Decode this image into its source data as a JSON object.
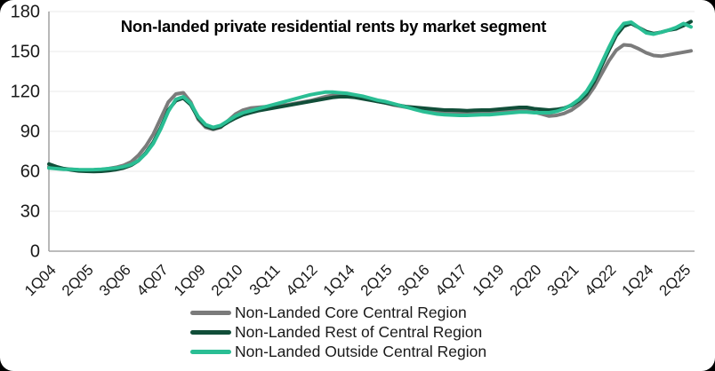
{
  "chart_data": {
    "type": "line",
    "title": "Non-landed private residential rents by market segment",
    "xlabel": "",
    "ylabel": "",
    "ylim": [
      0,
      180
    ],
    "y_ticks": [
      0,
      30,
      60,
      90,
      120,
      150,
      180
    ],
    "x_tick_labels": [
      "1Q04",
      "2Q05",
      "3Q06",
      "4Q07",
      "1Q09",
      "2Q10",
      "3Q11",
      "4Q12",
      "1Q14",
      "2Q15",
      "3Q16",
      "4Q17",
      "1Q19",
      "2Q20",
      "3Q21",
      "4Q22",
      "1Q24",
      "2Q25"
    ],
    "x_tick_every": 5,
    "x_frequency": "quarterly",
    "grid": "horizontal-light",
    "legend_position": "bottom",
    "gridline_color": "#e8e8e8",
    "axis_color": "#a6a6a6",
    "label_color": "#1a1a1a",
    "series": [
      {
        "name": "Non-Landed Core Central Region",
        "color": "#7b7b7b",
        "values": [
          63.5,
          62.5,
          62,
          61.5,
          61,
          60.8,
          61,
          61.3,
          62,
          63,
          64.5,
          67,
          72,
          79,
          88,
          100,
          112,
          118,
          119,
          112,
          99,
          93,
          91.5,
          93,
          98,
          103,
          106,
          107.5,
          108,
          108.5,
          109,
          109.5,
          110,
          111,
          112,
          113,
          114.5,
          116,
          117,
          117.5,
          117,
          116,
          115,
          114,
          112.5,
          111.5,
          110,
          109,
          108,
          107,
          106,
          105,
          104,
          103.5,
          103.5,
          103.5,
          103.3,
          103.5,
          104,
          104,
          104.5,
          105,
          105.5,
          106,
          106,
          104.5,
          103,
          101.5,
          102,
          103.5,
          106,
          110,
          115,
          123,
          133,
          143,
          151,
          155,
          154.5,
          152,
          149,
          147,
          146.5,
          147.5,
          148.5,
          149.5,
          150.5
        ]
      },
      {
        "name": "Non-Landed Rest of Central Region",
        "color": "#114e39",
        "values": [
          65.5,
          63.5,
          62,
          61,
          60.3,
          60,
          59.8,
          60,
          60.5,
          61.3,
          62.5,
          64.5,
          68,
          74,
          82,
          93,
          106,
          113,
          115,
          110,
          100,
          94,
          92,
          93.5,
          97,
          100,
          102.5,
          104,
          105.5,
          106.5,
          107.5,
          108.5,
          109.5,
          110.5,
          111.5,
          112.5,
          113.5,
          114.5,
          115.5,
          116,
          116,
          115.5,
          114.5,
          113.5,
          112.5,
          111.5,
          110.5,
          109.5,
          108.5,
          108,
          107.5,
          107,
          106.5,
          106,
          106,
          105.8,
          105.5,
          105.8,
          106,
          106,
          106.5,
          107,
          107.5,
          108,
          108,
          107,
          106.5,
          106,
          106.5,
          107.5,
          109.5,
          113,
          118,
          127,
          139,
          151,
          162,
          169,
          171,
          168,
          165,
          163.5,
          164.5,
          166,
          167,
          169.5,
          172.5
        ]
      },
      {
        "name": "Non-Landed Outside Central Region",
        "color": "#2abe94",
        "values": [
          62.5,
          62,
          61.5,
          61.5,
          61.3,
          61.2,
          61.3,
          61.5,
          62,
          62.5,
          63.5,
          65,
          68,
          73.5,
          81,
          92,
          105,
          114,
          116,
          111,
          101,
          95,
          93,
          94.5,
          98,
          101.5,
          104,
          105.5,
          107,
          108.5,
          110,
          111.5,
          113,
          114.5,
          116,
          117.5,
          118.5,
          119.5,
          119.5,
          119,
          118.5,
          117.5,
          116.5,
          115,
          113.5,
          112.5,
          111,
          109.5,
          108,
          106.5,
          105,
          104,
          103,
          102.5,
          102.3,
          102,
          102,
          102.3,
          102.5,
          102.5,
          103,
          103.5,
          104,
          104.5,
          104.5,
          104,
          104,
          104,
          105,
          107,
          110,
          114,
          120,
          129,
          141,
          153,
          164,
          171,
          172,
          168,
          164,
          163,
          164.5,
          166,
          168,
          171,
          168.5
        ]
      }
    ]
  }
}
